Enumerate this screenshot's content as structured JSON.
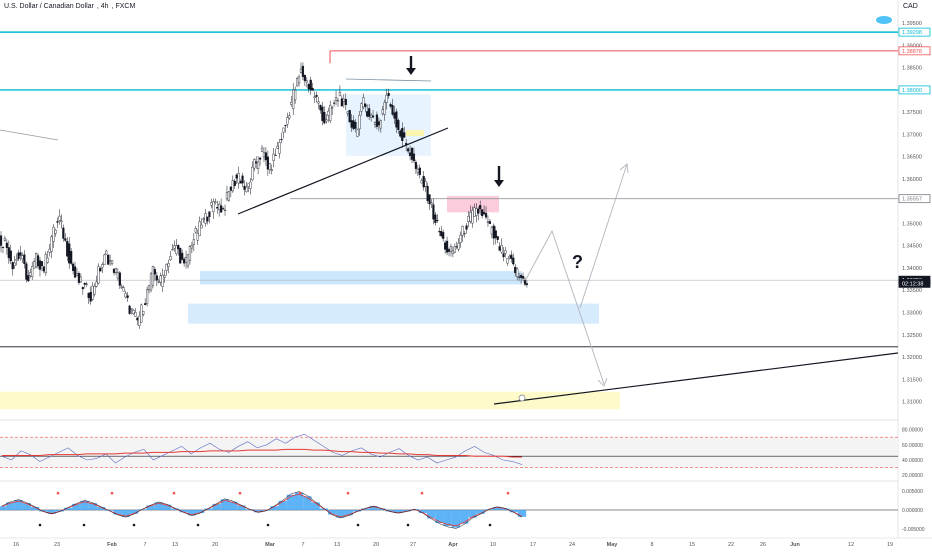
{
  "header": {
    "symbol": "U.S. Dollar / Canadian Dollar",
    "interval": "4h",
    "exchange": "FXCM",
    "currency": "CAD"
  },
  "chart_data": [
    {
      "type": "line",
      "panel": "price",
      "title": "",
      "y_ticks": [
        "1.39500",
        "1.39000",
        "1.38500",
        "1.38000",
        "1.37500",
        "1.37000",
        "1.36500",
        "1.36000",
        "1.35500",
        "1.35000",
        "1.34500",
        "1.34000",
        "1.33500",
        "1.33000",
        "1.32500",
        "1.32000",
        "1.31500",
        "1.31000"
      ],
      "ylim": [
        1.309,
        1.3975
      ],
      "x_ticks": [
        "16",
        "23",
        "Feb",
        "7",
        "13",
        "20",
        "Mar",
        "7",
        "13",
        "20",
        "27",
        "Apr",
        "10",
        "17",
        "24",
        "May",
        "8",
        "15",
        "22",
        "26",
        "Jun",
        "12",
        "19"
      ],
      "price_labels": [
        {
          "text": "1.39298",
          "value": 1.39298,
          "color": "#00bcd4"
        },
        {
          "text": "1.38878",
          "value": 1.38878,
          "color": "#ef5350"
        },
        {
          "text": "1.38000",
          "value": 1.38,
          "color": "#00bcd4"
        },
        {
          "text": "1.35557",
          "value": 1.35557,
          "color": "#787b86"
        },
        {
          "text": "1.33726",
          "value": 1.33726,
          "color": "#131722"
        },
        {
          "text": "02:12:38",
          "value": 1.33655,
          "color": "#131722"
        }
      ],
      "annotations": [
        "?"
      ],
      "series": [
        {
          "values": [
            1.346,
            1.341,
            1.343,
            1.337,
            1.342,
            1.34,
            1.347,
            1.351,
            1.344,
            1.338,
            1.336,
            1.334,
            1.339,
            1.343,
            1.34,
            1.336,
            1.331,
            1.328,
            1.333,
            1.339,
            1.337,
            1.342,
            1.345,
            1.34,
            1.346,
            1.349,
            1.352,
            1.355,
            1.353,
            1.358,
            1.361,
            1.357,
            1.363,
            1.366,
            1.362,
            1.367,
            1.372,
            1.379,
            1.384,
            1.381,
            1.378,
            1.373,
            1.376,
            1.379,
            1.374,
            1.371,
            1.377,
            1.374,
            1.372,
            1.379,
            1.374,
            1.369,
            1.366,
            1.361,
            1.358,
            1.352,
            1.347,
            1.343,
            1.345,
            1.349,
            1.352,
            1.353,
            1.35,
            1.346,
            1.343,
            1.341,
            1.338,
            1.337
          ]
        }
      ]
    },
    {
      "type": "line",
      "panel": "rsi",
      "y_ticks": [
        "80.00000",
        "60.00000",
        "40.00000",
        "20.00000"
      ],
      "ylim": [
        15,
        90
      ],
      "series": [
        {
          "name": "",
          "values": [
            45,
            40,
            52,
            47,
            38,
            44,
            50,
            56,
            46,
            40,
            42,
            48,
            36,
            44,
            50,
            54,
            40,
            46,
            52,
            58,
            48,
            56,
            62,
            54,
            50,
            58,
            64,
            56,
            60,
            68,
            62,
            70,
            74,
            66,
            58,
            50,
            46,
            52,
            56,
            48,
            44,
            50,
            55,
            46,
            40,
            44,
            36,
            40,
            44,
            52,
            58,
            50,
            46,
            40,
            38,
            34
          ]
        },
        {
          "name": "",
          "values": [
            46,
            46,
            46,
            46,
            46,
            47,
            47,
            47,
            47,
            48,
            48,
            48,
            48,
            49,
            49,
            49,
            50,
            50,
            50,
            51,
            51,
            51,
            52,
            52,
            52,
            52,
            53,
            53,
            53,
            53,
            54,
            54,
            54,
            53,
            53,
            52,
            51,
            51,
            50,
            50,
            49,
            49,
            48,
            48,
            47,
            47,
            46,
            46,
            46,
            46,
            45,
            45,
            45,
            45,
            44,
            44
          ]
        }
      ]
    },
    {
      "type": "bar",
      "panel": "macd",
      "y_ticks": [
        "0.005000",
        "0.000000",
        "-0.005000"
      ],
      "ylim": [
        -0.0068,
        0.0068
      ],
      "values": [
        0.001,
        0.002,
        0.0026,
        0.0018,
        0.0008,
        -0.0004,
        -0.001,
        -0.0004,
        0.0006,
        0.0016,
        0.0024,
        0.0018,
        0.0008,
        -0.0002,
        -0.0012,
        -0.0018,
        -0.001,
        0.0002,
        0.0012,
        0.002,
        0.0014,
        0.0004,
        -0.0006,
        -0.0014,
        -0.0008,
        0.0004,
        0.0016,
        0.0028,
        0.0022,
        0.0012,
        0.0002,
        -0.0006,
        -0.0002,
        0.001,
        0.0024,
        0.004,
        0.0046,
        0.0036,
        0.002,
        0.0004,
        -0.0012,
        -0.002,
        -0.0014,
        -0.0004,
        0.0004,
        0.001,
        0.0004,
        -0.0004,
        -0.0008,
        -0.0004,
        0.0002,
        -0.0008,
        -0.0022,
        -0.0034,
        -0.0042,
        -0.0046,
        -0.0036,
        -0.002,
        -0.001,
        0.0002,
        0.0008,
        0.0004,
        -0.0006,
        -0.0018
      ]
    }
  ]
}
